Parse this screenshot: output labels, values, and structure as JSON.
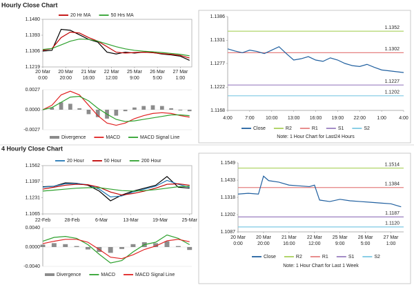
{
  "headings": [
    "Hourly Close Chart",
    "4 Hourly Close Chart"
  ],
  "chart_data": [
    {
      "type": "line",
      "x": [
        0,
        8,
        16,
        24,
        32,
        40,
        48,
        56,
        64,
        72,
        80,
        88,
        96,
        104,
        112,
        120,
        128
      ],
      "xlim": [
        0,
        130
      ],
      "xticks": [
        {
          "value": 0,
          "label": [
            "20 Mar",
            "0:00"
          ]
        },
        {
          "value": 20,
          "label": [
            "20 Mar",
            "20:00"
          ]
        },
        {
          "value": 40,
          "label": [
            "21 Mar",
            "16:00"
          ]
        },
        {
          "value": 60,
          "label": [
            "22 Mar",
            "12:00"
          ]
        },
        {
          "value": 80,
          "label": [
            "25 Mar",
            "9:00"
          ]
        },
        {
          "value": 100,
          "label": [
            "26 Mar",
            "5:00"
          ]
        },
        {
          "value": 120,
          "label": [
            "27 Mar",
            "1:00"
          ]
        }
      ],
      "ylim": [
        1.1219,
        1.148
      ],
      "yticks": [
        1.1219,
        1.1306,
        1.1393,
        {
          "value": 1.148,
          "label": "1.1480"
        }
      ],
      "series": [
        {
          "color": "#000000",
          "values": [
            1.1306,
            1.131,
            1.1425,
            1.142,
            1.1395,
            1.137,
            1.1355,
            1.13,
            1.129,
            1.13,
            1.1295,
            1.13,
            1.1298,
            1.129,
            1.1285,
            1.1278,
            1.1255
          ]
        },
        {
          "name": "20 Hr MA",
          "color": "#c00000",
          "values": [
            1.131,
            1.132,
            1.138,
            1.141,
            1.1405,
            1.138,
            1.136,
            1.133,
            1.13,
            1.1295,
            1.1298,
            1.13,
            1.1297,
            1.1292,
            1.1288,
            1.1282,
            1.1268
          ]
        },
        {
          "name": "50 Hrs MA",
          "color": "#2ca02c",
          "values": [
            1.1315,
            1.132,
            1.134,
            1.136,
            1.1372,
            1.137,
            1.136,
            1.1345,
            1.133,
            1.1318,
            1.131,
            1.1305,
            1.1302,
            1.1298,
            1.1293,
            1.1288,
            1.128
          ]
        }
      ]
    },
    {
      "type": "combo",
      "x": [
        0,
        8,
        16,
        24,
        32,
        40,
        48,
        56,
        64,
        72,
        80,
        88,
        96,
        104,
        112,
        120,
        128
      ],
      "xlim": [
        0,
        130
      ],
      "ylim": [
        -0.0027,
        0.0027
      ],
      "yticks": [
        -0.0027,
        {
          "value": 0,
          "label": "0.0000"
        },
        0.0027
      ],
      "series": [
        {
          "name": "Divergence",
          "mark": "bar",
          "color": "#8c8c8c",
          "values": [
            0,
            0.0003,
            0.001,
            0.0008,
            0.0002,
            -0.0006,
            -0.001,
            -0.0012,
            -0.0008,
            -0.0002,
            0.0003,
            0.0005,
            0.0006,
            0.0005,
            0.0002,
            -0.0001,
            -0.0002
          ]
        },
        {
          "name": "MACD",
          "mark": "line",
          "color": "#e02020",
          "values": [
            0,
            0.0006,
            0.002,
            0.0025,
            0.002,
            0.0006,
            -0.0008,
            -0.0018,
            -0.0021,
            -0.0018,
            -0.0012,
            -0.0008,
            -0.0005,
            -0.0004,
            -0.0005,
            -0.0008,
            -0.001
          ]
        },
        {
          "name": "MACD Signal Line",
          "mark": "line",
          "color": "#2ca02c",
          "values": [
            0,
            0.0003,
            0.001,
            0.0017,
            0.0018,
            0.0012,
            0.0002,
            -0.0006,
            -0.0013,
            -0.0016,
            -0.0015,
            -0.0013,
            -0.0011,
            -0.0009,
            -0.0007,
            -0.0007,
            -0.0008
          ]
        }
      ]
    },
    {
      "type": "line",
      "x": [
        0,
        1,
        2,
        3,
        4,
        5,
        6,
        7,
        8,
        9,
        10,
        11,
        12,
        13,
        14,
        15,
        16,
        17,
        18,
        19,
        20,
        21,
        22,
        23,
        24
      ],
      "xlim": [
        0,
        24
      ],
      "xticks": [
        {
          "value": 0,
          "label": "4:00"
        },
        {
          "value": 3,
          "label": "7:00"
        },
        {
          "value": 6,
          "label": "10:00"
        },
        {
          "value": 9,
          "label": "13:00"
        },
        {
          "value": 12,
          "label": "16:00"
        },
        {
          "value": 15,
          "label": "19:00"
        },
        {
          "value": 18,
          "label": "22:00"
        },
        {
          "value": 21,
          "label": "1:00"
        },
        {
          "value": 24,
          "label": "4:00"
        }
      ],
      "ylim": [
        1.1168,
        1.1386
      ],
      "yticks": [
        1.1168,
        1.1222,
        1.1277,
        1.1331,
        1.1386
      ],
      "series": [
        {
          "name": "Close",
          "color": "#1f5f9f",
          "values": [
            1.1311,
            1.1306,
            1.1302,
            1.1308,
            1.1305,
            1.13,
            1.1308,
            1.1316,
            1.13,
            1.1285,
            1.1288,
            1.1293,
            1.1285,
            1.1282,
            1.129,
            1.1285,
            1.1277,
            1.1272,
            1.127,
            1.1275,
            1.1268,
            1.1262,
            1.126,
            1.1258,
            1.1256
          ]
        }
      ],
      "levels": [
        {
          "name": "R2",
          "value": 1.1352,
          "color": "#a9d05a"
        },
        {
          "name": "R1",
          "value": 1.1302,
          "color": "#e58080"
        },
        {
          "name": "S1",
          "value": 1.1227,
          "color": "#9a7fc0"
        },
        {
          "name": "S2",
          "value": 1.1202,
          "color": "#7cc8e4"
        }
      ],
      "note": "Note: 1 Hour Chart for Last24 Hours"
    },
    {
      "type": "line",
      "x": [
        0,
        10,
        20,
        30,
        40,
        50,
        60,
        70,
        80,
        90,
        100,
        110,
        120,
        130
      ],
      "xlim": [
        0,
        132
      ],
      "xticks": [
        {
          "value": 0,
          "label": "22-Feb"
        },
        {
          "value": 26,
          "label": "28-Feb"
        },
        {
          "value": 52,
          "label": "6-Mar"
        },
        {
          "value": 78,
          "label": "13-Mar"
        },
        {
          "value": 104,
          "label": "19-Mar"
        },
        {
          "value": 130,
          "label": "25-Mar"
        }
      ],
      "ylim": [
        1.1065,
        1.1562
      ],
      "yticks": [
        1.1065,
        1.1231,
        1.1397,
        1.1562
      ],
      "series": [
        {
          "color": "#000000",
          "values": [
            1.1345,
            1.135,
            1.1385,
            1.138,
            1.136,
            1.13,
            1.12,
            1.126,
            1.13,
            1.133,
            1.136,
            1.145,
            1.134,
            1.133
          ]
        },
        {
          "name": "20 Hour",
          "color": "#1f77b4",
          "values": [
            1.134,
            1.135,
            1.1375,
            1.1378,
            1.1365,
            1.132,
            1.124,
            1.125,
            1.129,
            1.132,
            1.135,
            1.141,
            1.137,
            1.134
          ]
        },
        {
          "name": "50 Hour",
          "color": "#c00000",
          "values": [
            1.132,
            1.134,
            1.136,
            1.137,
            1.1365,
            1.134,
            1.129,
            1.126,
            1.1275,
            1.13,
            1.133,
            1.137,
            1.1375,
            1.136
          ]
        },
        {
          "name": "200 Hour",
          "color": "#2ca02c",
          "values": [
            1.13,
            1.131,
            1.132,
            1.133,
            1.1335,
            1.1335,
            1.132,
            1.1305,
            1.13,
            1.1305,
            1.1315,
            1.133,
            1.1345,
            1.135
          ]
        }
      ]
    },
    {
      "type": "combo",
      "x": [
        0,
        10,
        20,
        30,
        40,
        50,
        60,
        70,
        80,
        90,
        100,
        110,
        120,
        130
      ],
      "xlim": [
        0,
        132
      ],
      "ylim": [
        -0.004,
        0.004
      ],
      "yticks": [
        {
          "value": -0.004,
          "label": "-0.0040"
        },
        {
          "value": 0,
          "label": "0.0000"
        },
        {
          "value": 0.004,
          "label": "0.0040"
        }
      ],
      "series": [
        {
          "name": "Divergence",
          "mark": "bar",
          "color": "#8c8c8c",
          "values": [
            0.0005,
            0.0008,
            0.0006,
            0.0002,
            -0.0005,
            -0.001,
            -0.0012,
            -0.0004,
            0.0006,
            0.001,
            0.0008,
            0.0012,
            0.0002,
            -0.0006
          ]
        },
        {
          "name": "MACD",
          "mark": "line",
          "color": "#2ca02c",
          "values": [
            0.0012,
            0.002,
            0.0022,
            0.0018,
            0.0005,
            -0.0015,
            -0.0033,
            -0.0028,
            -0.001,
            0.0005,
            0.001,
            0.0025,
            0.0018,
            0.0005
          ]
        },
        {
          "name": "MACD Signal Line",
          "mark": "line",
          "color": "#e02020",
          "values": [
            0.0007,
            0.0012,
            0.0016,
            0.0016,
            0.001,
            -0.0005,
            -0.0021,
            -0.0024,
            -0.0016,
            -0.0005,
            0.0002,
            0.0013,
            0.0016,
            0.0011
          ]
        }
      ]
    },
    {
      "type": "line",
      "x": [
        0,
        8,
        16,
        20,
        24,
        32,
        40,
        48,
        56,
        60,
        64,
        72,
        80,
        88,
        96,
        104,
        112,
        120,
        128
      ],
      "xlim": [
        0,
        130
      ],
      "xticks": [
        {
          "value": 0,
          "label": [
            "20 Mar",
            "0:00"
          ]
        },
        {
          "value": 20,
          "label": [
            "20 Mar",
            "20:00"
          ]
        },
        {
          "value": 40,
          "label": [
            "21 Mar",
            "16:00"
          ]
        },
        {
          "value": 60,
          "label": [
            "22 Mar",
            "12:00"
          ]
        },
        {
          "value": 80,
          "label": [
            "25 Mar",
            "9:00"
          ]
        },
        {
          "value": 100,
          "label": [
            "26 Mar",
            "5:00"
          ]
        },
        {
          "value": 120,
          "label": [
            "27 Mar",
            "1:00"
          ]
        }
      ],
      "ylim": [
        1.1087,
        1.1549
      ],
      "yticks": [
        1.1087,
        1.1202,
        1.1318,
        1.1433,
        1.1549
      ],
      "series": [
        {
          "name": "Close",
          "color": "#1f5f9f",
          "values": [
            1.134,
            1.1345,
            1.134,
            1.146,
            1.143,
            1.142,
            1.14,
            1.1395,
            1.139,
            1.14,
            1.13,
            1.129,
            1.1305,
            1.1295,
            1.129,
            1.1285,
            1.128,
            1.1275,
            1.1255
          ]
        }
      ],
      "levels": [
        {
          "name": "R2",
          "value": 1.1514,
          "color": "#a9d05a"
        },
        {
          "name": "R1",
          "value": 1.1384,
          "color": "#e58080"
        },
        {
          "name": "S1",
          "value": 1.1187,
          "color": "#9a7fc0"
        },
        {
          "name": "S2",
          "value": 1.112,
          "label": "1.1120",
          "color": "#7cc8e4"
        }
      ],
      "note": "Note: 1 Hour Chart for Last 1 Week"
    }
  ]
}
